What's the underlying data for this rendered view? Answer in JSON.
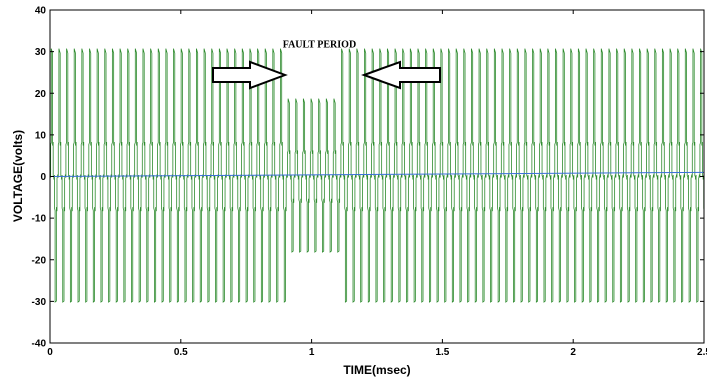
{
  "chart_data": {
    "type": "line",
    "title": "",
    "xlabel": "TIME(msec)",
    "ylabel": "VOLTAGE(volts)",
    "xlim": [
      0,
      2.5
    ],
    "ylim": [
      -40,
      40
    ],
    "x_ticks": [
      0,
      0.5,
      1,
      1.5,
      2,
      2.5
    ],
    "x_tick_labels": [
      "0",
      "0.5",
      "1",
      "1.5",
      "2",
      "2.5"
    ],
    "y_ticks": [
      -40,
      -30,
      -20,
      -10,
      0,
      10,
      20,
      30,
      40
    ],
    "y_tick_labels": [
      "-40",
      "-30",
      "-20",
      "-10",
      "0",
      "10",
      "20",
      "30",
      "40"
    ],
    "grid": false,
    "fault_period": {
      "start": 0.9,
      "end": 1.12
    },
    "series": [
      {
        "color": "#2e8b2e",
        "normal_peak": 30,
        "normal_step": 8,
        "fault_peak": 18,
        "fault_step": 6
      },
      {
        "color": "#3a6fd8",
        "start": 0,
        "end": 1
      }
    ],
    "annotations": [
      {
        "text": "FAULT PERIOD",
        "x": 1.03,
        "y": 31
      }
    ]
  },
  "colors": {
    "axis": "#000000",
    "arrow_fill": "#ffffff",
    "arrow_stroke": "#000000"
  }
}
